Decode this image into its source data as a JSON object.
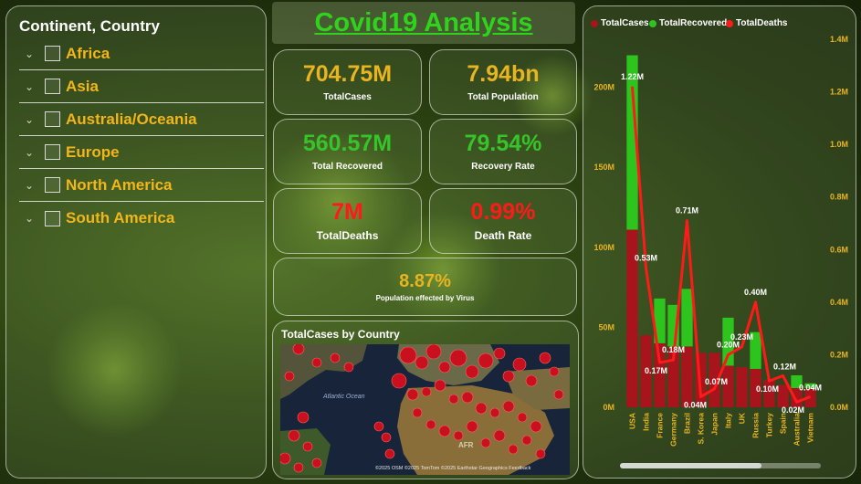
{
  "title": "Covid19 Analysis",
  "slicer": {
    "header": "Continent, Country",
    "items": [
      {
        "label": "Africa"
      },
      {
        "label": "Asia"
      },
      {
        "label": "Australia/Oceania"
      },
      {
        "label": "Europe"
      },
      {
        "label": "North America"
      },
      {
        "label": "South America"
      }
    ]
  },
  "cards": {
    "total_cases": {
      "value": "704.75M",
      "label": "TotalCases"
    },
    "total_population": {
      "value": "7.94bn",
      "label": "Total Population"
    },
    "total_recovered": {
      "value": "560.57M",
      "label": "Total Recovered"
    },
    "recovery_rate": {
      "value": "79.54%",
      "label": "Recovery Rate"
    },
    "total_deaths": {
      "value": "7M",
      "label": "TotalDeaths"
    },
    "death_rate": {
      "value": "0.99%",
      "label": "Death Rate"
    },
    "population_effected": {
      "value": "8.87%",
      "label": "Population effected by Virus"
    }
  },
  "map": {
    "title": "TotalCases by Country",
    "ocean_label": "Atlantic Ocean",
    "region_label": "AFR",
    "attribution": "©2025 OSM ©2025 TomTom ©2025 Earthstar Geographics Feedback"
  },
  "colors": {
    "cases": "#a8141c",
    "recovered": "#2ec41e",
    "deaths_line": "#ff1a1a",
    "gold": "#e8b420",
    "title_green": "#2fd31c"
  },
  "chart_data": {
    "type": "bar",
    "combo": "stacked bar (TotalCases + TotalRecovered) with TotalDeaths line on secondary axis",
    "categories": [
      "USA",
      "India",
      "France",
      "Germany",
      "Brazil",
      "S. Korea",
      "Japan",
      "Italy",
      "UK",
      "Russia",
      "Turkey",
      "Spain",
      "Australia",
      "Vietnam"
    ],
    "series": [
      {
        "name": "TotalCases",
        "values": [
          111,
          45,
          40,
          38,
          38,
          34,
          34,
          26,
          25,
          24,
          17,
          14,
          12,
          12
        ]
      },
      {
        "name": "TotalRecovered",
        "values": [
          109,
          0,
          28,
          26,
          36,
          0,
          0,
          30,
          0,
          23,
          0,
          0,
          8,
          3
        ]
      },
      {
        "name": "TotalDeaths",
        "values": [
          1.22,
          0.53,
          0.17,
          0.18,
          0.71,
          0.04,
          0.07,
          0.2,
          0.23,
          0.4,
          0.1,
          0.12,
          0.02,
          0.04
        ],
        "axis": "secondary"
      }
    ],
    "death_labels": [
      "1.22M",
      "0.53M",
      "0.17M",
      "0.18M",
      "0.71M",
      "0.04M",
      "0.07M",
      "0.20M",
      "0.23M",
      "0.40M",
      "0.10M",
      "0.12M",
      "0.02M",
      "0.04M"
    ],
    "legend": [
      "TotalCases",
      "TotalRecovered",
      "TotalDeaths"
    ],
    "legend_position": "top-left",
    "y_left": {
      "ylim": [
        0,
        230
      ],
      "ticks": [
        "0M",
        "50M",
        "100M",
        "150M",
        "200M"
      ],
      "tick_values": [
        0,
        50,
        100,
        150,
        200
      ]
    },
    "y_right": {
      "ylim": [
        0,
        1.4
      ],
      "ticks": [
        "0.0M",
        "0.2M",
        "0.4M",
        "0.6M",
        "0.8M",
        "1.0M",
        "1.2M",
        "1.4M"
      ],
      "tick_values": [
        0,
        0.2,
        0.4,
        0.6,
        0.8,
        1.0,
        1.2,
        1.4
      ]
    },
    "grid": false
  }
}
